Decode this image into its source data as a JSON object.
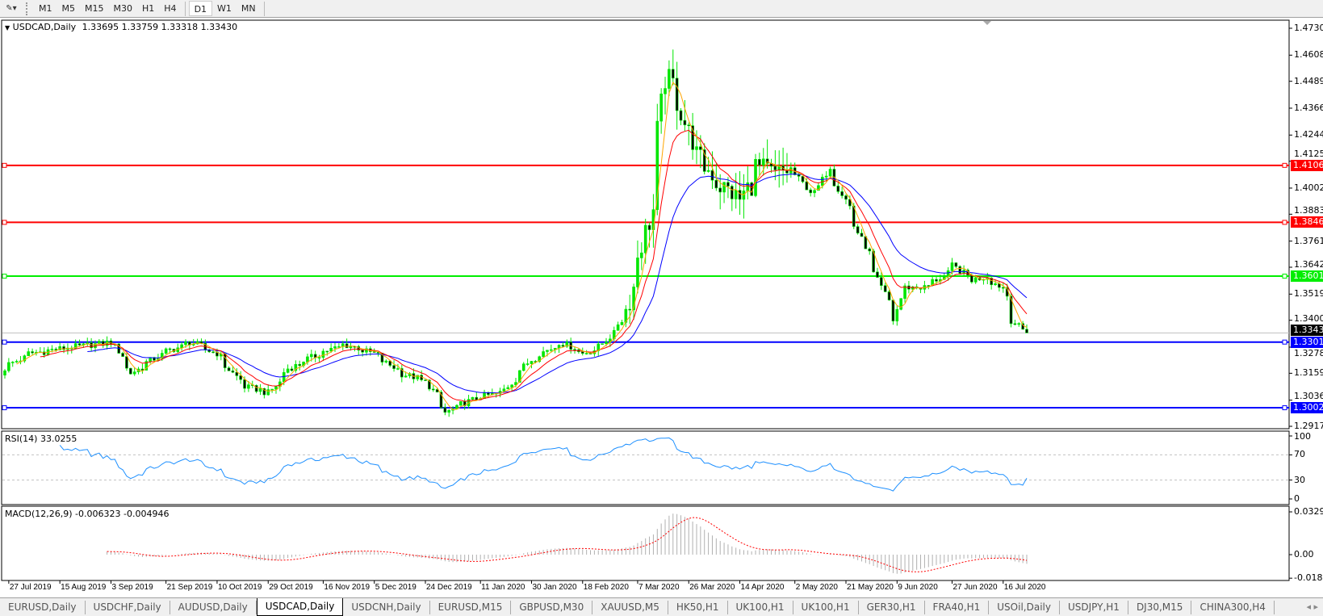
{
  "toolbar": {
    "timeframes": [
      "M1",
      "M5",
      "M15",
      "M30",
      "H1",
      "H4",
      "D1",
      "W1",
      "MN"
    ],
    "active": "D1"
  },
  "main": {
    "symbol_label": "USDCAD,Daily",
    "ohlc": "1.33695 1.33759 1.33318 1.33430"
  },
  "rsi": {
    "label": "RSI(14) 33.0255",
    "levels": [
      "100",
      "70",
      "30",
      "0"
    ]
  },
  "macd": {
    "label": "MACD(12,26,9) -0.006323 -0.004946",
    "ticks": [
      "0.032972",
      "0.00",
      "-0.018154"
    ]
  },
  "price_axis": [
    "1.47305",
    "1.46080",
    "1.44890",
    "1.43665",
    "1.42440",
    "1.41250",
    "1.40025",
    "1.38835",
    "1.37610",
    "1.36420",
    "1.35195",
    "1.34005",
    "1.32780",
    "1.31590",
    "1.30365",
    "1.29175"
  ],
  "hlines": [
    {
      "price": "1.41060",
      "color": "#ff0000"
    },
    {
      "price": "1.38464",
      "color": "#ff0000"
    },
    {
      "price": "1.36015",
      "color": "#00ee00"
    },
    {
      "price": "1.33011",
      "color": "#0000ff"
    },
    {
      "price": "1.30020",
      "color": "#0000ff"
    }
  ],
  "current_price": {
    "price": "1.33430",
    "color": "#000000"
  },
  "colors": {
    "bull": "#00e600",
    "bear": "#000000",
    "ma_fast": "#ffa500",
    "ma_mid": "#ff0000",
    "ma_slow": "#0000ff",
    "rsi": "#1e90ff",
    "macd_hist": "#b0b0b0",
    "macd_signal": "#ff0000"
  },
  "chart_data": {
    "type": "candlestick",
    "symbol": "USDCAD",
    "timeframe": "Daily",
    "date_labels": [
      "27 Jul 2019",
      "15 Aug 2019",
      "3 Sep 2019",
      "21 Sep 2019",
      "10 Oct 2019",
      "29 Oct 2019",
      "16 Nov 2019",
      "5 Dec 2019",
      "24 Dec 2019",
      "11 Jan 2020",
      "30 Jan 2020",
      "18 Feb 2020",
      "7 Mar 2020",
      "26 Mar 2020",
      "14 Apr 2020",
      "2 May 2020",
      "21 May 2020",
      "9 Jun 2020",
      "27 Jun 2020",
      "16 Jul 2020"
    ],
    "ylim": [
      1.29175,
      1.47305
    ],
    "approx_closes": [
      [
        "2019-07-26",
        1.318
      ],
      [
        "2019-08-05",
        1.325
      ],
      [
        "2019-08-15",
        1.327
      ],
      [
        "2019-09-03",
        1.33
      ],
      [
        "2019-09-10",
        1.316
      ],
      [
        "2019-09-21",
        1.325
      ],
      [
        "2019-10-01",
        1.33
      ],
      [
        "2019-10-10",
        1.325
      ],
      [
        "2019-10-20",
        1.31
      ],
      [
        "2019-10-29",
        1.307
      ],
      [
        "2019-11-05",
        1.318
      ],
      [
        "2019-11-16",
        1.325
      ],
      [
        "2019-11-25",
        1.329
      ],
      [
        "2019-12-05",
        1.325
      ],
      [
        "2019-12-15",
        1.316
      ],
      [
        "2019-12-24",
        1.312
      ],
      [
        "2019-12-31",
        1.298
      ],
      [
        "2020-01-11",
        1.305
      ],
      [
        "2020-01-20",
        1.307
      ],
      [
        "2020-01-30",
        1.322
      ],
      [
        "2020-02-10",
        1.33
      ],
      [
        "2020-02-18",
        1.325
      ],
      [
        "2020-02-24",
        1.328
      ],
      [
        "2020-03-03",
        1.34
      ],
      [
        "2020-03-09",
        1.37
      ],
      [
        "2020-03-13",
        1.39
      ],
      [
        "2020-03-18",
        1.45
      ],
      [
        "2020-03-22",
        1.445
      ],
      [
        "2020-03-26",
        1.425
      ],
      [
        "2020-04-01",
        1.41
      ],
      [
        "2020-04-08",
        1.4
      ],
      [
        "2020-04-14",
        1.395
      ],
      [
        "2020-04-20",
        1.41
      ],
      [
        "2020-04-26",
        1.405
      ],
      [
        "2020-05-02",
        1.41
      ],
      [
        "2020-05-10",
        1.395
      ],
      [
        "2020-05-15",
        1.41
      ],
      [
        "2020-05-21",
        1.395
      ],
      [
        "2020-05-26",
        1.38
      ],
      [
        "2020-06-03",
        1.355
      ],
      [
        "2020-06-08",
        1.34
      ],
      [
        "2020-06-11",
        1.355
      ],
      [
        "2020-06-18",
        1.355
      ],
      [
        "2020-06-25",
        1.36
      ],
      [
        "2020-06-29",
        1.365
      ],
      [
        "2020-07-05",
        1.358
      ],
      [
        "2020-07-10",
        1.36
      ],
      [
        "2020-07-16",
        1.355
      ],
      [
        "2020-07-20",
        1.34
      ],
      [
        "2020-07-24",
        1.3343
      ]
    ],
    "rsi_levels": [
      70,
      30
    ],
    "rsi_ylim": [
      0,
      100
    ],
    "macd_ylim": [
      -0.018154,
      0.032972
    ],
    "grid": false
  },
  "tabs": [
    "EURUSD,Daily",
    "USDCHF,Daily",
    "AUDUSD,Daily",
    "USDCAD,Daily",
    "USDCNH,Daily",
    "EURUSD,M15",
    "GBPUSD,M30",
    "XAUUSD,M5",
    "HK50,H1",
    "UK100,H1",
    "UK100,H1",
    "GER30,H1",
    "FRA40,H1",
    "USOil,Daily",
    "USDJPY,H1",
    "DJ30,M15",
    "CHINA300,H4"
  ],
  "active_tab": "USDCAD,Daily"
}
